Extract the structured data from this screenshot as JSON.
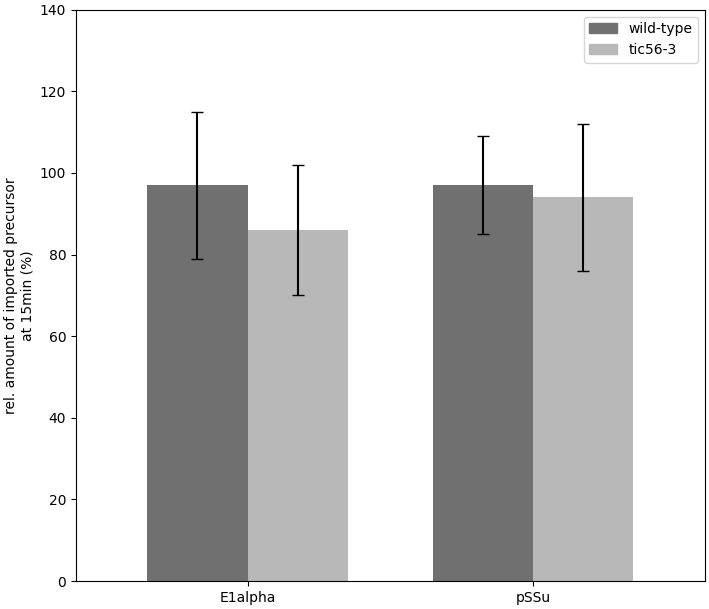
{
  "chart_data": {
    "type": "bar",
    "categories": [
      "E1alpha",
      "pSSu"
    ],
    "y_label": "rel. amount of imported precursor\nat 15min (%)",
    "series": [
      {
        "name": "wild-type",
        "color": "#707070",
        "values": [
          97,
          97
        ],
        "errors": [
          18,
          12
        ]
      },
      {
        "name": "tic56-3",
        "color": "#b8b8b8",
        "values": [
          86,
          94
        ],
        "errors": [
          16,
          18
        ]
      }
    ],
    "ylim": [
      0,
      140
    ],
    "yticks": [
      0,
      20,
      40,
      60,
      80,
      100,
      120,
      140
    ],
    "legend": "upper right"
  }
}
